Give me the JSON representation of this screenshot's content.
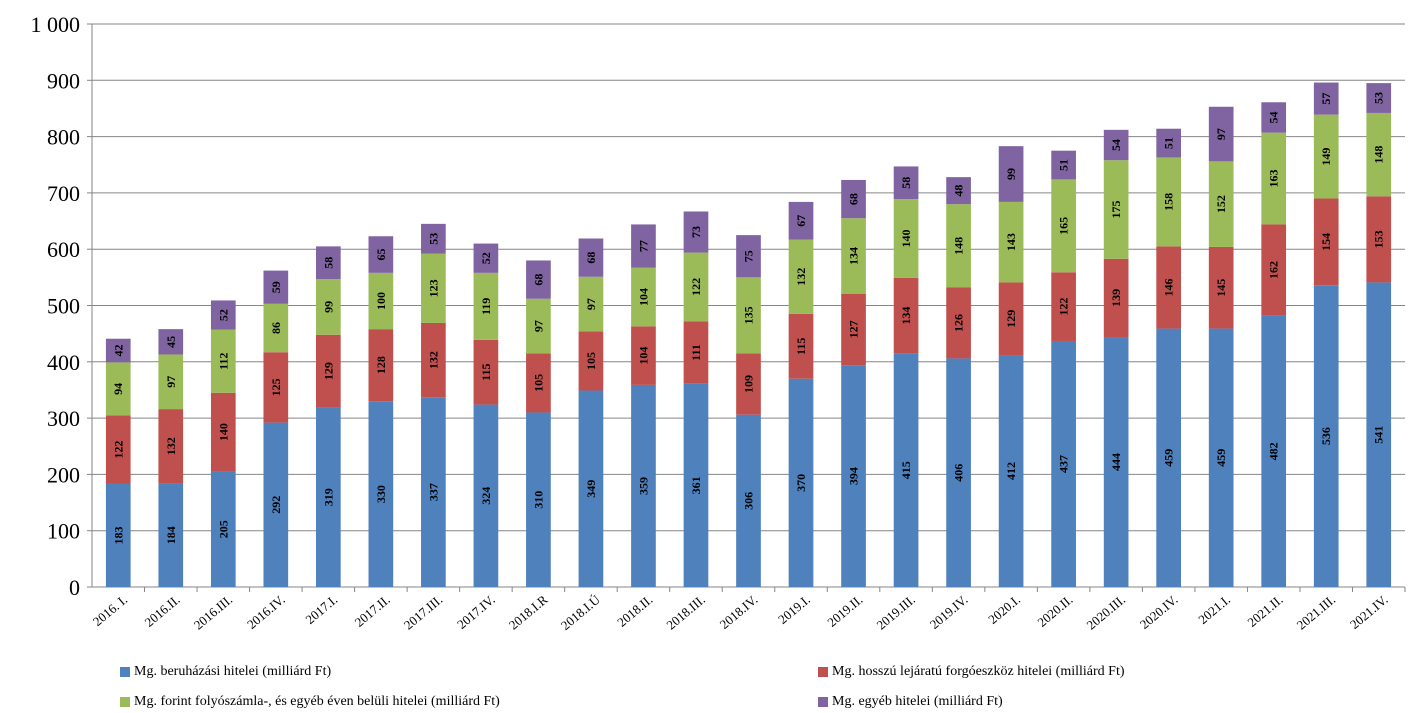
{
  "chart_data": {
    "type": "bar",
    "stacked": true,
    "categories": [
      "2016. I.",
      "2016.II.",
      "2016.III.",
      "2016.IV.",
      "2017.I.",
      "2017.II.",
      "2017.III.",
      "2017.IV.",
      "2018.I.R",
      "2018.I.Ú",
      "2018.II.",
      "2018.III.",
      "2018.IV.",
      "2019.I.",
      "2019.II.",
      "2019.III.",
      "2019.IV.",
      "2020.I.",
      "2020.II.",
      "2020.III.",
      "2020.IV.",
      "2021.I.",
      "2021.II.",
      "2021.III.",
      "2021.IV."
    ],
    "series": [
      {
        "name": "Mg. beruházási hitelei (milliárd Ft)",
        "color": "#4F81BD",
        "values": [
          183,
          184,
          205,
          292,
          319,
          330,
          337,
          324,
          310,
          349,
          359,
          361,
          306,
          370,
          394,
          415,
          406,
          412,
          437,
          444,
          459,
          459,
          482,
          536,
          541
        ]
      },
      {
        "name": "Mg. hosszú lejáratú forgóeszköz hitelei (milliárd Ft)",
        "color": "#C0504D",
        "values": [
          122,
          132,
          140,
          125,
          129,
          128,
          132,
          115,
          105,
          105,
          104,
          111,
          109,
          115,
          127,
          134,
          126,
          129,
          122,
          139,
          146,
          145,
          162,
          154,
          153
        ]
      },
      {
        "name": "Mg. forint folyószámla-, és egyéb éven belüli hitelei (milliárd Ft)",
        "color": "#9BBB59",
        "values": [
          94,
          97,
          112,
          86,
          99,
          100,
          123,
          119,
          97,
          97,
          104,
          122,
          135,
          132,
          134,
          140,
          148,
          143,
          165,
          175,
          158,
          152,
          163,
          149,
          148
        ]
      },
      {
        "name": "Mg. egyéb hitelei (milliárd Ft)",
        "color": "#8064A2",
        "values": [
          42,
          45,
          52,
          59,
          58,
          65,
          53,
          52,
          68,
          68,
          77,
          73,
          75,
          67,
          68,
          58,
          48,
          99,
          51,
          54,
          51,
          97,
          54,
          57,
          53
        ]
      }
    ],
    "yticks": [
      0,
      100,
      200,
      300,
      400,
      500,
      600,
      700,
      800,
      900,
      1000
    ],
    "ytick_labels": [
      "0",
      "100",
      "200",
      "300",
      "400",
      "500",
      "600",
      "700",
      "800",
      "900",
      "1 000"
    ],
    "ylim": [
      0,
      1000
    ],
    "grid": true,
    "legend_position": "bottom",
    "title": "",
    "xlabel": "",
    "ylabel": ""
  }
}
